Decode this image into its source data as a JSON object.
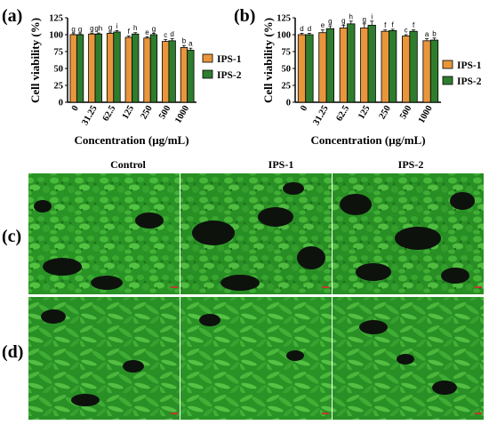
{
  "panels": {
    "a": "(a)",
    "b": "(b)",
    "c": "(c)",
    "d": "(d)"
  },
  "colors": {
    "IPS-1": "#e8953c",
    "IPS-2": "#2e7d2e",
    "cell_green": "#2fa82a",
    "background_dark": "#0d120d"
  },
  "micrograph_columns": [
    "Control",
    "IPS-1",
    "IPS-2"
  ],
  "chart_data": [
    {
      "type": "bar",
      "panel": "(a)",
      "categories": [
        "0",
        "31.25",
        "62.5",
        "125",
        "250",
        "500",
        "1000"
      ],
      "xlabel": "Concentration (μg/mL)",
      "ylabel": "Cell viability (%)",
      "ylim": [
        0,
        125
      ],
      "yticks": [
        "0",
        "25",
        "50",
        "75",
        "100",
        "125"
      ],
      "legend_position": "right",
      "series": [
        {
          "name": "IPS-1",
          "values": [
            100,
            101,
            102,
            96,
            95,
            90,
            81
          ],
          "errors": [
            1.5,
            1.5,
            2,
            2,
            2,
            3,
            3
          ],
          "letters": [
            "g",
            "g",
            "g",
            "f",
            "e",
            "c",
            "b"
          ]
        },
        {
          "name": "IPS-2",
          "values": [
            100,
            101,
            104,
            101,
            100,
            91,
            77
          ],
          "errors": [
            1.5,
            1.5,
            2,
            2,
            2,
            3,
            3
          ],
          "letters": [
            "g",
            "gh",
            "i",
            "h",
            "g",
            "d",
            "a"
          ]
        }
      ]
    },
    {
      "type": "bar",
      "panel": "(b)",
      "categories": [
        "0",
        "31.25",
        "62.5",
        "125",
        "250",
        "500",
        "1000"
      ],
      "xlabel": "Concentration (μg/mL)",
      "ylabel": "Cell viability (%)",
      "ylim": [
        0,
        125
      ],
      "yticks": [
        "0",
        "25",
        "50",
        "75",
        "100",
        "125"
      ],
      "legend_position": "right",
      "series": [
        {
          "name": "IPS-1",
          "values": [
            100,
            103,
            110,
            110,
            105,
            98,
            91
          ],
          "errors": [
            2,
            4,
            4,
            6,
            2,
            2,
            3
          ],
          "letters": [
            "d",
            "e",
            "g",
            "g",
            "f",
            "c",
            "a"
          ]
        },
        {
          "name": "IPS-2",
          "values": [
            100,
            109,
            116,
            114,
            106,
            105,
            92
          ],
          "errors": [
            2,
            4,
            4,
            6,
            2,
            2,
            3
          ],
          "letters": [
            "d",
            "g",
            "h",
            "i",
            "f",
            "f",
            "b"
          ]
        }
      ]
    }
  ]
}
